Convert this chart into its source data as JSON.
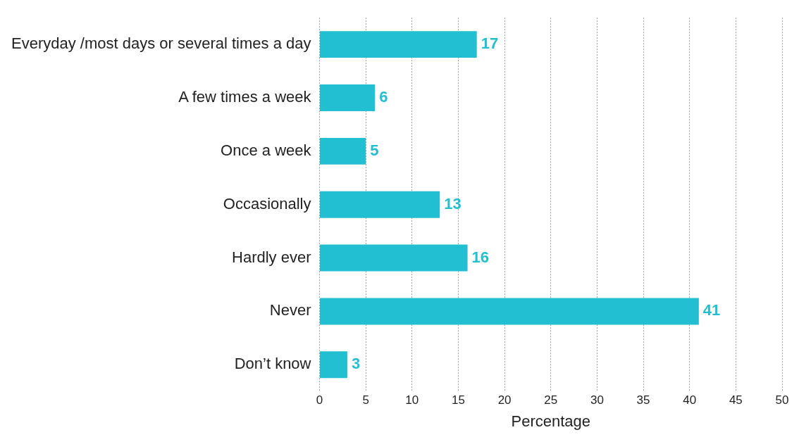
{
  "chart_data": {
    "type": "bar",
    "orientation": "horizontal",
    "xlabel": "Percentage",
    "categories": [
      "Everyday /most days or several times a day",
      "A few times a week",
      "Once a week",
      "Occasionally",
      "Hardly ever",
      "Never",
      "Don’t know"
    ],
    "values": [
      17,
      6,
      5,
      13,
      16,
      41,
      3
    ],
    "color": "#22bfd3",
    "xlim": [
      0,
      50
    ],
    "xticks": [
      0,
      5,
      10,
      15,
      20,
      25,
      30,
      35,
      40,
      45,
      50
    ],
    "grid": "x",
    "data_labels": true,
    "legend": false
  }
}
